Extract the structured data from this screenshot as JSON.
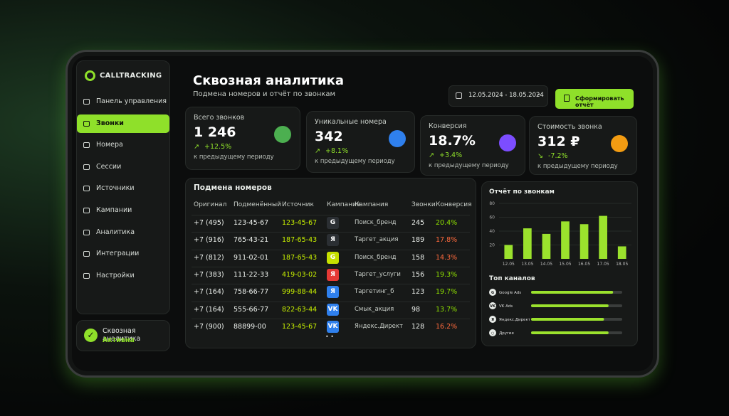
{
  "sidebar": {
    "brand": "CALLTRACKING",
    "menu": [
      "Панель управления",
      "Звонки",
      "Номера",
      "Сессии",
      "Источники",
      "Кампании",
      "Аналитика",
      "Интеграции",
      "Настройки"
    ],
    "active": 1,
    "status": {
      "title": "Сквозная аналитика",
      "state": "Активна"
    }
  },
  "header": {
    "title": "Сквозная аналитика",
    "subtitle": "Подмена номеров и отчёт по звонкам",
    "date_range": "12.05.2024 - 18.05.2024",
    "button": "Сформировать отчёт"
  },
  "kpis": [
    {
      "label": "Всего звонков",
      "value": "1 246",
      "change": "+12.5%",
      "note": "к предыдущему периоду",
      "icon_color": "#4caf50"
    },
    {
      "label": "Уникальные номера",
      "value": "342",
      "change": "+8.1%",
      "note": "к предыдущему периоду",
      "icon_color": "#2f80ed"
    },
    {
      "label": "Конверсия",
      "value": "18.7%",
      "change": "+3.4%",
      "note": "к предыдущему периоду",
      "icon_color": "#7c4dff"
    },
    {
      "label": "Стоимость звонка",
      "value": "312 ₽",
      "change": "-7.2%",
      "note": "к предыдущему периоду",
      "icon_color": "#f39c12"
    }
  ],
  "table": {
    "title": "Подмена номеров",
    "columns": [
      "Оригинал",
      "Подменённый",
      "Источник",
      "Кампания",
      "Кампания",
      "Звонки",
      "Конверсия"
    ],
    "rows": [
      {
        "cells": [
          "+7 (495)",
          "123-45-67",
          "123-45-67",
          "G",
          "Поиск_бренд",
          "245",
          "20.4%"
        ],
        "badge": "#2b2f33",
        "tone": "#8ee000"
      },
      {
        "cells": [
          "+7 (916)",
          "765-43-21",
          "187-65-43",
          "Я",
          "Таргет_акция",
          "189",
          "17.8%"
        ],
        "badge": "#2b2f33",
        "tone": "#ff6a3d"
      },
      {
        "cells": [
          "+7 (812)",
          "911-02-01",
          "187-65-43",
          "G",
          "Поиск_бренд",
          "158",
          "14.3%"
        ],
        "badge": "#c6e000",
        "tone": "#ff6a3d"
      },
      {
        "cells": [
          "+7 (383)",
          "111-22-33",
          "419-03-02",
          "Я",
          "Таргет_услуги",
          "156",
          "19.3%"
        ],
        "badge": "#e53935",
        "tone": "#8ee000"
      },
      {
        "cells": [
          "+7 (164)",
          "758-66-77",
          "999-88-44",
          "Я",
          "Таргетинг_б",
          "123",
          "19.7%"
        ],
        "badge": "#2f80ed",
        "tone": "#8ee000"
      },
      {
        "cells": [
          "+7 (164)",
          "555-66-77",
          "822-63-44",
          "VK",
          "Смык_акция",
          "98",
          "13.7%"
        ],
        "badge": "#2f80ed",
        "tone": "#8ee000"
      },
      {
        "cells": [
          "+7 (900)",
          "88899-00",
          "123-45-67",
          "VK",
          "Яндекс.Директ",
          "128",
          "16.2%"
        ],
        "badge": "#2f80ed",
        "tone": "#ff6a3d"
      }
    ]
  },
  "chart_data": {
    "type": "bar",
    "title": "Отчёт по звонкам",
    "categories": [
      "12.05",
      "13.05",
      "14.05",
      "15.05",
      "16.05",
      "17.05",
      "18.05"
    ],
    "values": [
      20,
      44,
      36,
      54,
      50,
      62,
      18
    ],
    "color": "#9be22d",
    "ylim": [
      0,
      80
    ],
    "yticks": [
      20,
      40,
      60,
      80
    ],
    "grid": true
  },
  "channels_title": "Топ каналов",
  "channels": [
    {
      "name": "Google Ads",
      "icon": "G",
      "value": 90
    },
    {
      "name": "VK Ads",
      "icon": "VK",
      "value": 85
    },
    {
      "name": "Яндекс.Директ",
      "icon": "Я",
      "value": 80
    },
    {
      "name": "Другие",
      "icon": "○",
      "value": 85
    }
  ]
}
